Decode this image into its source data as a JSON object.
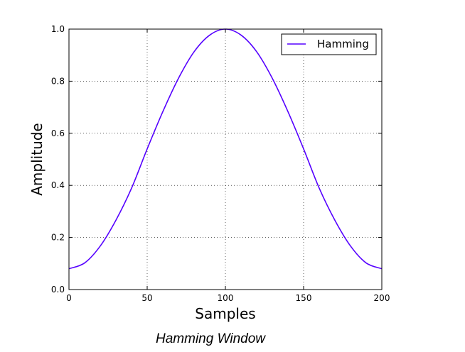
{
  "caption": "Hamming Window",
  "chart_data": {
    "type": "line",
    "title": "",
    "xlabel": "Samples",
    "ylabel": "Amplitude",
    "xlim": [
      0,
      200
    ],
    "ylim": [
      0.0,
      1.0
    ],
    "xticks": [
      0,
      50,
      100,
      150,
      200
    ],
    "xtick_labels": [
      "0",
      "50",
      "100",
      "150",
      "200"
    ],
    "yticks": [
      0.0,
      0.2,
      0.4,
      0.6,
      0.8,
      1.0
    ],
    "ytick_labels": [
      "0.0",
      "0.2",
      "0.4",
      "0.6",
      "0.8",
      "1.0"
    ],
    "grid": true,
    "legend": {
      "placement": "top-right",
      "entries": [
        "Hamming"
      ]
    },
    "series": [
      {
        "name": "Hamming",
        "color": "#5500ff",
        "x": [
          0,
          10,
          20,
          30,
          40,
          50,
          60,
          70,
          80,
          90,
          100,
          110,
          120,
          130,
          140,
          150,
          160,
          170,
          180,
          190,
          200
        ],
        "y": [
          0.08,
          0.102,
          0.167,
          0.266,
          0.389,
          0.54,
          0.683,
          0.811,
          0.913,
          0.977,
          1.0,
          0.977,
          0.913,
          0.811,
          0.683,
          0.54,
          0.389,
          0.266,
          0.167,
          0.102,
          0.08
        ]
      }
    ]
  }
}
